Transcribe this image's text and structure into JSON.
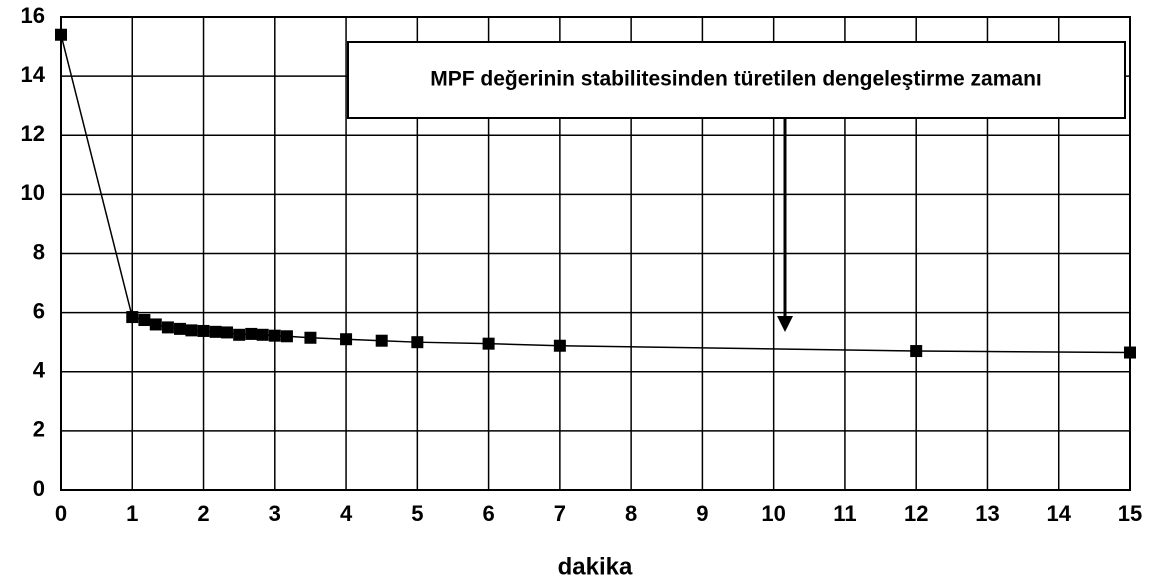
{
  "chart_data": {
    "type": "line",
    "x_label": "dakika",
    "annotation": "MPF değerinin stabilitesinden türetilen dengeleştirme zamanı",
    "x": [
      0,
      1,
      1.17,
      1.33,
      1.5,
      1.67,
      1.83,
      2,
      2.17,
      2.33,
      2.5,
      2.67,
      2.83,
      3,
      3.17,
      3.5,
      4,
      4.5,
      5,
      6,
      7,
      12,
      15
    ],
    "values": [
      15.4,
      5.85,
      5.75,
      5.6,
      5.5,
      5.45,
      5.4,
      5.38,
      5.35,
      5.33,
      5.25,
      5.28,
      5.25,
      5.22,
      5.2,
      5.15,
      5.1,
      5.05,
      5.0,
      4.95,
      4.88,
      4.7,
      4.65
    ],
    "color": "#000000",
    "xlim": [
      0,
      15
    ],
    "xticks": [
      0,
      1,
      2,
      3,
      4,
      5,
      6,
      7,
      8,
      9,
      10,
      11,
      12,
      13,
      14,
      15
    ],
    "ylim": [
      0,
      16
    ],
    "yticks": [
      0,
      2,
      4,
      6,
      8,
      10,
      12,
      14,
      16
    ],
    "grid": true
  }
}
